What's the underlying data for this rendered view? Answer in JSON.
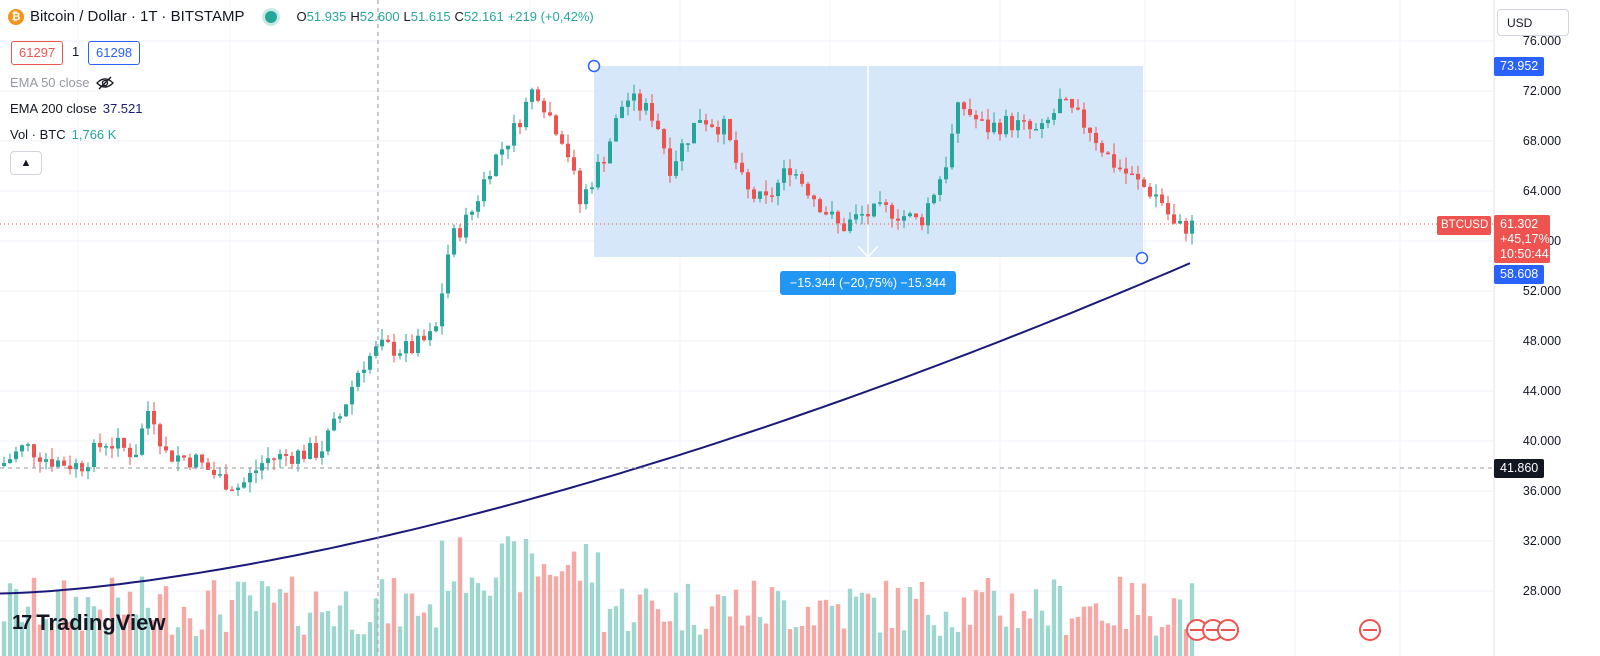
{
  "header": {
    "symbol_title": "Bitcoin / Dollar · 1T · BITSTAMP",
    "ohlc": {
      "o_label": "O",
      "o_value": "51.935",
      "h_label": "H",
      "h_value": "52.600",
      "l_label": "L",
      "l_value": "51.615",
      "c_label": "C",
      "c_value": "52.161",
      "change": "+219 (+0,42%)"
    }
  },
  "order": {
    "sell_price": "61297",
    "spread": "1",
    "buy_price": "61298"
  },
  "indicators": [
    {
      "name": "EMA 50 close",
      "value": ""
    },
    {
      "name": "EMA 200 close",
      "value": "37.521"
    },
    {
      "name": "Vol · BTC",
      "value": "1,766 K"
    }
  ],
  "currency_selector": "USD",
  "price_axis": [
    "76.000",
    "72.000",
    "68.000",
    "64.000",
    "56.000",
    "52.000",
    "48.000",
    "44.000",
    "40.000",
    "36.000",
    "32.000",
    "28.000"
  ],
  "price_labels": {
    "range_top": "73.952",
    "symbol": "BTCUSD",
    "last": "61.302",
    "change_pct": "+45,17%",
    "countdown": "10:50:44",
    "ema_value": "58.608",
    "crosshair": "41.860"
  },
  "measure_label": "−15.344 (−20,75%) −15.344",
  "branding": "TradingView",
  "colors": {
    "up": "#26a69a",
    "down": "#ef5350",
    "ema": "#1a1a7a",
    "range_fill": "#c5ddf8",
    "accent": "#2962ff"
  }
}
